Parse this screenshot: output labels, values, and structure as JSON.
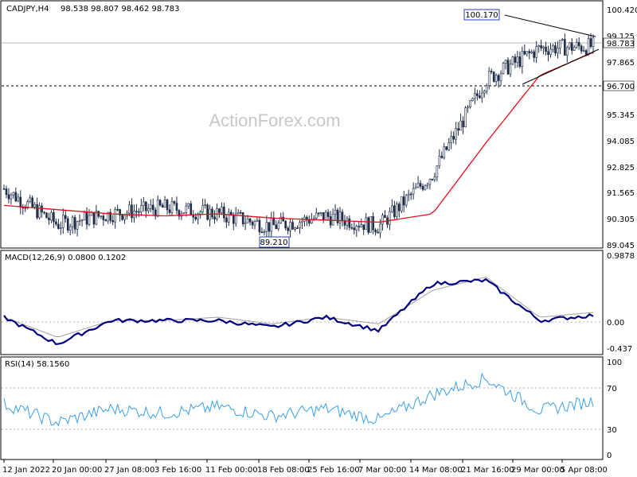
{
  "header": {
    "symbol": "CADJPY,H4",
    "ohlc": "98.538 98.807 98.462 98.783"
  },
  "watermark": "ActionForex.com",
  "colors": {
    "candle": "#1f2d4a",
    "ma": "#e0101a",
    "macd": "#00007f",
    "signal": "#a0a0a0",
    "rsi": "#3aa0e6",
    "trendline": "#000000",
    "grid": "#b0b0b0",
    "label_box": "#1f3fbf"
  },
  "price_panel": {
    "yticks": [
      "100.420",
      "99.125",
      "97.865",
      "96.700",
      "95.345",
      "94.085",
      "92.825",
      "91.565",
      "90.305",
      "89.045"
    ],
    "current_price_label": "98.783",
    "support_label": "96.700",
    "high_label": "100.170",
    "low_label": "89.210"
  },
  "macd_panel": {
    "title": "MACD(12,26,9) 0.0800 0.1202",
    "yticks": [
      "0.9878",
      "0.00",
      "-0.437"
    ]
  },
  "rsi_panel": {
    "title": "RSI(14) 58.1560",
    "yticks": [
      "100",
      "70",
      "30",
      "0"
    ]
  },
  "xticks": [
    "12 Jan 2022",
    "20 Jan 00:00",
    "27 Jan 08:00",
    "3 Feb 16:00",
    "11 Feb 00:00",
    "18 Feb 08:00",
    "25 Feb 16:00",
    "7 Mar 00:00",
    "14 Mar 08:00",
    "21 Mar 16:00",
    "29 Mar 00:00",
    "5 Apr 08:00"
  ],
  "chart_data": {
    "type": "candlestick",
    "symbol": "CADJPY",
    "timeframe": "H4",
    "x": [
      "12 Jan 2022",
      "20 Jan 00:00",
      "27 Jan 08:00",
      "3 Feb 16:00",
      "11 Feb 00:00",
      "18 Feb 08:00",
      "25 Feb 16:00",
      "7 Mar 00:00",
      "14 Mar 08:00",
      "21 Mar 16:00",
      "29 Mar 00:00",
      "5 Apr 08:00"
    ],
    "close": [
      91.8,
      90.1,
      90.6,
      90.9,
      90.6,
      90.0,
      90.5,
      90.0,
      92.5,
      97.0,
      98.5,
      98.6
    ],
    "moving_average": [
      91.0,
      90.8,
      90.6,
      90.5,
      90.6,
      90.4,
      90.3,
      90.2,
      90.6,
      94.0,
      97.2,
      98.3
    ],
    "key_levels": {
      "high": 100.17,
      "low": 89.21,
      "support": 96.7,
      "last": 98.783
    },
    "macd": [
      0.05,
      -0.35,
      0.0,
      0.0,
      0.0,
      -0.1,
      0.05,
      -0.15,
      0.55,
      0.6,
      0.0,
      0.08
    ],
    "macd_signal": [
      0.05,
      -0.25,
      0.0,
      0.0,
      0.05,
      -0.05,
      0.05,
      -0.05,
      0.45,
      0.65,
      0.05,
      0.12
    ],
    "rsi": [
      55,
      35,
      50,
      45,
      52,
      42,
      50,
      38,
      65,
      82,
      48,
      58
    ],
    "ylim_price": [
      89.045,
      100.42
    ],
    "ylim_macd": [
      -0.437,
      0.9878
    ],
    "ylim_rsi": [
      0,
      100
    ],
    "rsi_levels": [
      70,
      30
    ],
    "grid": false
  }
}
